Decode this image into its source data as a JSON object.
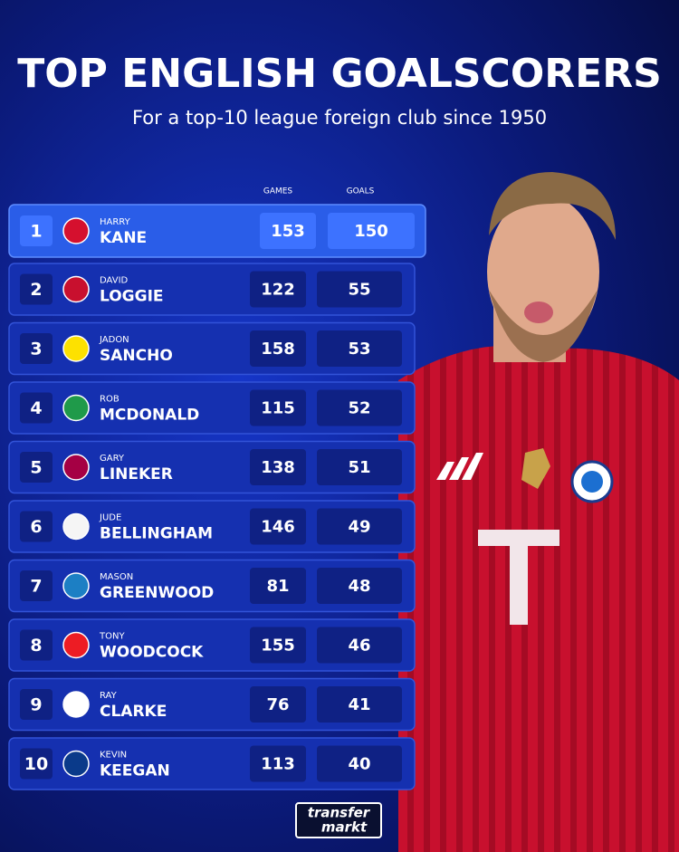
{
  "header": {
    "title": "TOP ENGLISH GOALSCORERS",
    "subtitle": "For a top-10 league foreign club since 1950"
  },
  "table": {
    "columns": [
      "GAMES",
      "GOALS"
    ],
    "rows": [
      {
        "rank": 1,
        "first_name": "HARRY",
        "last_name": "KANE",
        "games": 153,
        "goals": 150
      },
      {
        "rank": 2,
        "first_name": "DAVID",
        "last_name": "LOGGIE",
        "games": 122,
        "goals": 55
      },
      {
        "rank": 3,
        "first_name": "JADON",
        "last_name": "SANCHO",
        "games": 158,
        "goals": 53
      },
      {
        "rank": 4,
        "first_name": "ROB",
        "last_name": "MCDONALD",
        "games": 115,
        "goals": 52
      },
      {
        "rank": 5,
        "first_name": "GARY",
        "last_name": "LINEKER",
        "games": 138,
        "goals": 51
      },
      {
        "rank": 6,
        "first_name": "JUDE",
        "last_name": "BELLINGHAM",
        "games": 146,
        "goals": 49
      },
      {
        "rank": 7,
        "first_name": "MASON",
        "last_name": "GREENWOOD",
        "games": 81,
        "goals": 48
      },
      {
        "rank": 8,
        "first_name": "TONY",
        "last_name": "WOODCOCK",
        "games": 155,
        "goals": 46
      },
      {
        "rank": 9,
        "first_name": "RAY",
        "last_name": "CLARKE",
        "games": 76,
        "goals": 41
      },
      {
        "rank": 10,
        "first_name": "KEVIN",
        "last_name": "KEEGAN",
        "games": 113,
        "goals": 40
      }
    ]
  },
  "footer": {
    "logo_top": "transfer",
    "logo_bottom": "markt"
  }
}
